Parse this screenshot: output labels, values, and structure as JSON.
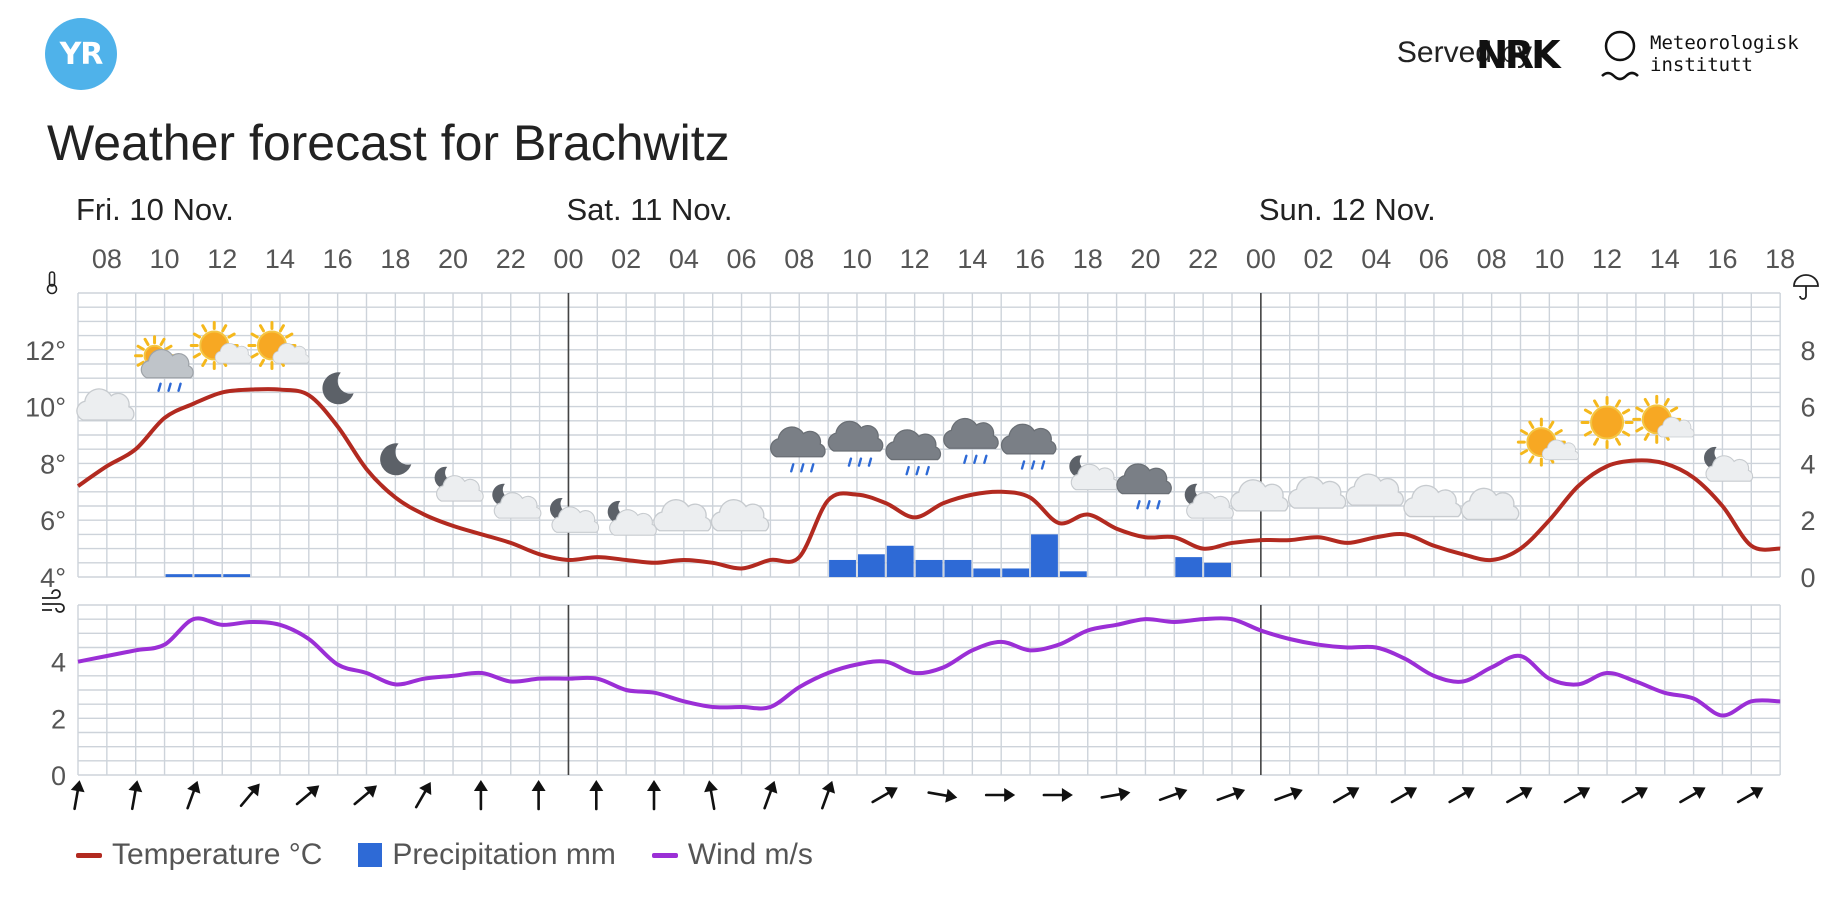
{
  "header": {
    "logo_text": "YR",
    "served_by": "Served by",
    "nrk_logo_text": "NRK",
    "met_name_line1": "Meteorologisk",
    "met_name_line2": "institutt"
  },
  "page_title": "Weather forecast for Brachwitz",
  "colors": {
    "temperature": "#b22a20",
    "precipitation": "#2e6ad6",
    "wind": "#9b2fd6",
    "grid": "#cdd3da",
    "yr_blue": "#4fb2ea"
  },
  "legend": [
    {
      "label": "Temperature °C",
      "kind": "line",
      "color": "#b22a20"
    },
    {
      "label": "Precipitation mm",
      "kind": "box",
      "color": "#2e6ad6"
    },
    {
      "label": "Wind m/s",
      "kind": "line",
      "color": "#9b2fd6"
    }
  ],
  "chart_data": [
    {
      "type": "line",
      "title": "",
      "start_hour_label": "07",
      "days": [
        {
          "label": "Fri. 10 Nov.",
          "start_index": 0
        },
        {
          "label": "Sat. 11 Nov.",
          "start_index": 17
        },
        {
          "label": "Sun. 12 Nov.",
          "start_index": 41
        }
      ],
      "tick_labels": [
        "08",
        "10",
        "12",
        "14",
        "16",
        "18",
        "20",
        "22",
        "00",
        "02",
        "04",
        "06",
        "08",
        "10",
        "12",
        "14",
        "16",
        "18",
        "20",
        "22",
        "00",
        "02",
        "04",
        "06",
        "08",
        "10",
        "12",
        "14",
        "16",
        "18"
      ],
      "left_axis": {
        "label_icon": "thermometer-icon",
        "unit": "°",
        "ticks": [
          4,
          6,
          8,
          10,
          12
        ],
        "ylim": [
          4,
          14
        ]
      },
      "right_axis": {
        "label_icon": "umbrella-icon",
        "ticks": [
          0,
          2,
          4,
          6,
          8
        ],
        "ylim": [
          0,
          10
        ]
      },
      "series": [
        {
          "name": "Temperature °C",
          "color": "#b22a20",
          "values": [
            7.2,
            7.9,
            8.5,
            9.6,
            10.1,
            10.5,
            10.6,
            10.6,
            10.4,
            9.3,
            7.8,
            6.8,
            6.2,
            5.8,
            5.5,
            5.2,
            4.8,
            4.6,
            4.7,
            4.6,
            4.5,
            4.6,
            4.5,
            4.3,
            4.6,
            4.7,
            6.7,
            6.9,
            6.6,
            6.1,
            6.6,
            6.9,
            7.0,
            6.8,
            5.9,
            6.2,
            5.7,
            5.4,
            5.4,
            5.0,
            5.2,
            5.3,
            5.3,
            5.4,
            5.2,
            5.4,
            5.5,
            5.1,
            4.8,
            4.6,
            5.0,
            6.0,
            7.2,
            7.9,
            8.1,
            8.0,
            7.5,
            6.5,
            5.1,
            5.0
          ]
        },
        {
          "name": "Precipitation mm",
          "color": "#2e6ad6",
          "kind": "bar",
          "values": [
            0,
            0,
            0,
            0.1,
            0.1,
            0.1,
            0,
            0,
            0,
            0,
            0,
            0,
            0,
            0,
            0,
            0,
            0,
            0,
            0,
            0,
            0,
            0,
            0,
            0,
            0,
            0,
            0.6,
            0.8,
            1.1,
            0.6,
            0.6,
            0.3,
            0.3,
            1.5,
            0.2,
            0,
            0,
            0,
            0.7,
            0.5,
            0,
            0,
            0,
            0,
            0,
            0,
            0,
            0,
            0,
            0,
            0,
            0,
            0,
            0,
            0,
            0,
            0,
            0,
            0,
            0
          ]
        }
      ],
      "weather_symbols": [
        "cloudy",
        "sun-cloud-rain",
        "partly-sunny",
        "partly-sunny",
        "moon",
        "moon",
        "moon-cloud",
        "moon-cloud",
        "moon-cloud",
        "moon-cloud",
        "cloudy",
        "cloudy",
        "cloud-rain",
        "cloud-rain",
        "cloud-rain",
        "cloud-rain",
        "cloud-rain",
        "moon-cloud",
        "cloud-rain",
        "moon-cloud",
        "cloudy",
        "cloudy",
        "cloudy",
        "cloudy",
        "cloudy",
        "partly-sunny",
        "sunny",
        "partly-sunny",
        "moon-cloud"
      ]
    },
    {
      "type": "line",
      "title": "",
      "left_axis": {
        "label_icon": "wind-icon",
        "ticks": [
          0,
          2,
          4
        ],
        "ylim": [
          0,
          6
        ]
      },
      "series": [
        {
          "name": "Wind m/s",
          "color": "#9b2fd6",
          "values": [
            4.0,
            4.2,
            4.4,
            4.6,
            5.5,
            5.3,
            5.4,
            5.3,
            4.8,
            3.9,
            3.6,
            3.2,
            3.4,
            3.5,
            3.6,
            3.3,
            3.4,
            3.4,
            3.4,
            3.0,
            2.9,
            2.6,
            2.4,
            2.4,
            2.4,
            3.1,
            3.6,
            3.9,
            4.0,
            3.6,
            3.8,
            4.4,
            4.7,
            4.4,
            4.6,
            5.1,
            5.3,
            5.5,
            5.4,
            5.5,
            5.5,
            5.1,
            4.8,
            4.6,
            4.5,
            4.5,
            4.1,
            3.5,
            3.3,
            3.8,
            4.2,
            3.4,
            3.2,
            3.6,
            3.3,
            2.9,
            2.7,
            2.1,
            2.6,
            2.6
          ]
        }
      ],
      "wind_direction_deg": [
        10,
        10,
        20,
        40,
        50,
        50,
        30,
        0,
        0,
        0,
        0,
        -10,
        20,
        20,
        60,
        100,
        90,
        90,
        80,
        70,
        70,
        70,
        60,
        60,
        60,
        60,
        60,
        60,
        60,
        60
      ]
    }
  ]
}
